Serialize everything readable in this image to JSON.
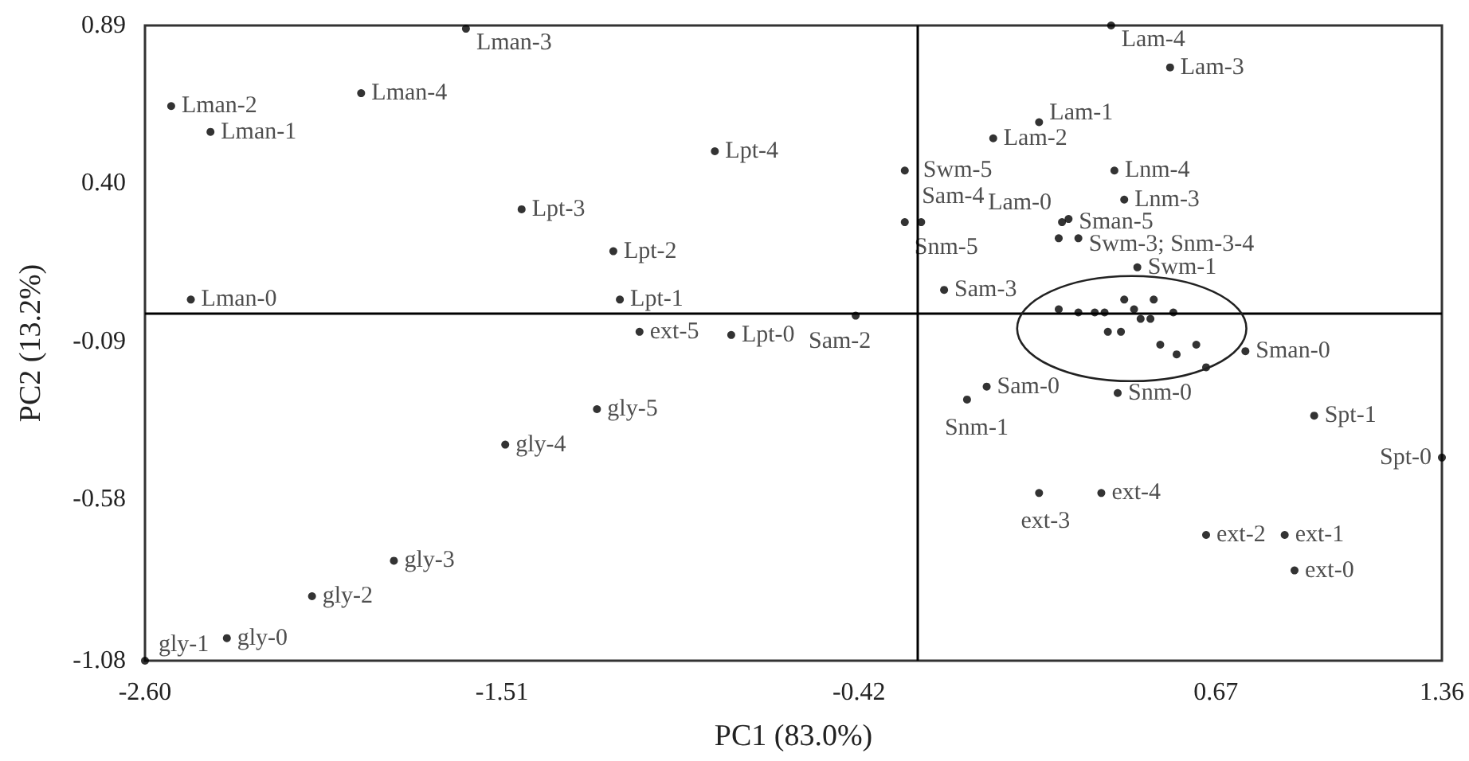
{
  "chart_data": {
    "type": "scatter",
    "xlabel": "PC1 (83.0%)",
    "ylabel": "PC2 (13.2%)",
    "xlim": [
      -2.6,
      1.36
    ],
    "xticks": [
      {
        "value": -2.6,
        "label": "-2.60"
      },
      -1.51,
      -0.42,
      0.67,
      1.36
    ],
    "ylim": [
      -1.08,
      0.89
    ],
    "yticks": [
      -1.08,
      -0.58,
      -0.09,
      {
        "value": 0.4,
        "label": "0.40"
      },
      0.89
    ],
    "grid": false,
    "marker": "circle",
    "ref_lines": [
      {
        "axis": "x",
        "value": -0.24,
        "color": "#000000"
      },
      {
        "axis": "y",
        "value": 0,
        "color": "#000000"
      }
    ],
    "series": [
      {
        "color": "#000000",
        "x": [
          -2.46,
          -2.4,
          -2.52,
          -1.62,
          -1.94,
          -0.81,
          -1.15,
          -1.17,
          -1.45,
          -0.86,
          0.2,
          0.13,
          -0.01,
          0.53,
          0.35,
          0.39,
          0.36,
          -0.03,
          -0.43,
          -0.16,
          -0.23,
          0.37,
          -0.09,
          -0.28,
          0.43,
          0.19,
          0.25,
          -0.28,
          0.76,
          0.22,
          1.36,
          0.97,
          0.91,
          0.88,
          0.64,
          0.13,
          0.32,
          -1.09,
          -2.35,
          -2.6,
          -2.09,
          -1.84,
          -1.5,
          -1.22,
          0.19,
          0.25,
          0.3,
          0.33,
          0.39,
          0.42,
          0.48,
          0.54,
          0.44,
          0.47,
          0.34,
          0.38,
          0.5,
          0.61,
          0.55,
          0.64
        ],
        "values": [
          0.04,
          0.56,
          0.64,
          0.88,
          0.68,
          -0.07,
          0.04,
          0.19,
          0.32,
          0.5,
          0.28,
          0.59,
          0.54,
          0.76,
          0.89,
          0.35,
          0.44,
          -0.23,
          -0.01,
          0.07,
          0.28,
          -0.25,
          -0.27,
          0.28,
          0.14,
          0.23,
          0.23,
          0.44,
          -0.12,
          0.29,
          -0.45,
          -0.32,
          -0.8,
          -0.69,
          -0.69,
          -0.56,
          -0.56,
          -0.06,
          -1.01,
          -1.08,
          -0.88,
          -0.77,
          -0.41,
          -0.3,
          0.01,
          0.0,
          0.0,
          0.0,
          0.04,
          0.01,
          0.04,
          0.0,
          -0.02,
          -0.02,
          -0.06,
          -0.06,
          -0.1,
          -0.1,
          -0.13,
          -0.17
        ],
        "value_labels": [
          "Lman-0",
          "Lman-1",
          "Lman-2",
          "Lman-3",
          "Lman-4",
          "Lpt-0",
          "Lpt-1",
          "Lpt-2",
          "Lpt-3",
          "Lpt-4",
          "Lam-0",
          "Lam-1",
          "Lam-2",
          "Lam-3",
          "Lam-4",
          "Lnm-3",
          "Lnm-4",
          "Sam-0",
          "Sam-2",
          "Sam-3",
          "Sam-4",
          "Snm-0",
          "Snm-1",
          "Snm-5",
          "Swm-1",
          null,
          "Swm-3; Snm-3-4",
          "Swm-5",
          "Sman-0",
          "Sman-5",
          "Spt-0",
          "Spt-1",
          "ext-0",
          "ext-1",
          "ext-2",
          "ext-3",
          "ext-4",
          "ext-5",
          "gly-0",
          "gly-1",
          "gly-2",
          "gly-3",
          "gly-4",
          "gly-5",
          null,
          null,
          null,
          null,
          null,
          null,
          null,
          null,
          null,
          null,
          null,
          null,
          null,
          null,
          null,
          null
        ]
      }
    ]
  }
}
